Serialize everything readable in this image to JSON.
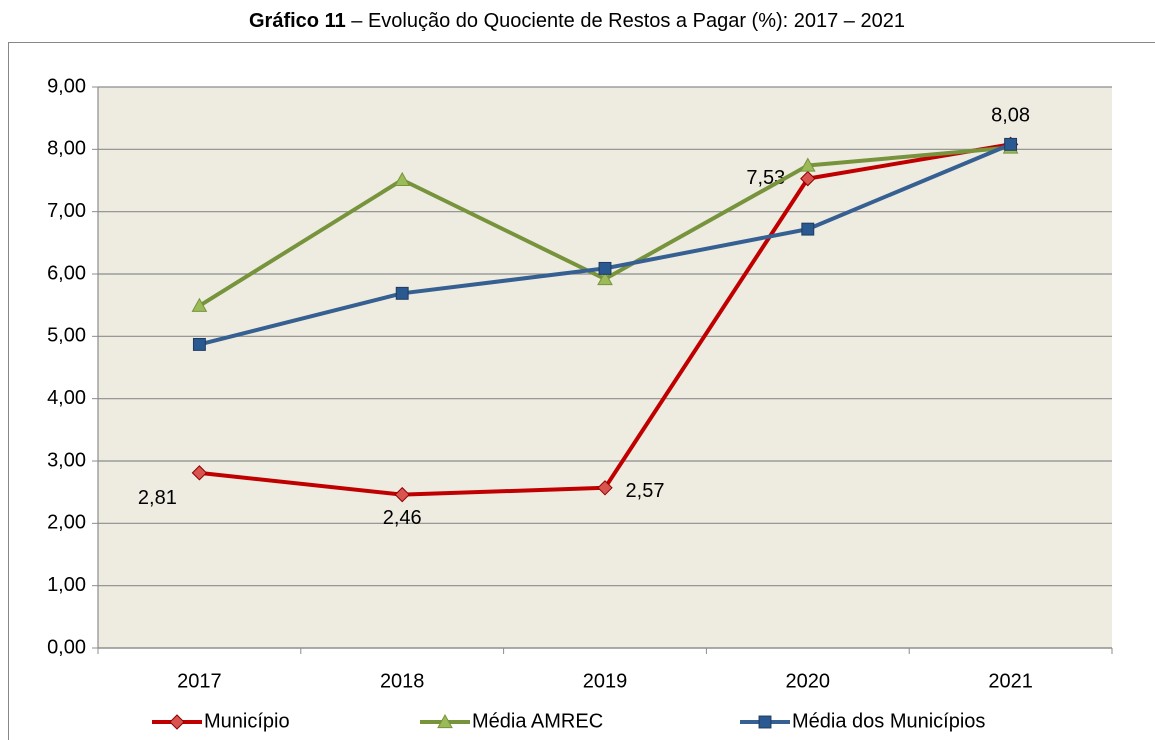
{
  "chart_data": {
    "type": "line",
    "title": {
      "number": "Gráfico 11",
      "text": "– Evolução do Quociente de Restos a Pagar (%): 2017 – 2021"
    },
    "categories": [
      "2017",
      "2018",
      "2019",
      "2020",
      "2021"
    ],
    "series": [
      {
        "name": "Município",
        "color": "#C00000",
        "marker": "diamond",
        "marker_color": "#D9534F",
        "values": [
          2.81,
          2.46,
          2.57,
          7.53,
          8.08
        ],
        "value_labels": [
          "2,81",
          "2,46",
          "2,57",
          "7,53",
          "8,08"
        ]
      },
      {
        "name": "Média AMREC",
        "color": "#77933C",
        "marker": "triangle",
        "marker_color": "#9BBB59",
        "values": [
          5.49,
          7.51,
          5.92,
          7.74,
          8.03
        ]
      },
      {
        "name": "Média dos Municípios",
        "color": "#376092",
        "marker": "square",
        "marker_color": "#2A5890",
        "values": [
          4.87,
          5.69,
          6.09,
          6.72,
          8.08
        ]
      }
    ],
    "ylim": [
      0,
      9
    ],
    "yticks": [
      {
        "value": 0,
        "label": "0,00"
      },
      {
        "value": 1,
        "label": "1,00"
      },
      {
        "value": 2,
        "label": "2,00"
      },
      {
        "value": 3,
        "label": "3,00"
      },
      {
        "value": 4,
        "label": "4,00"
      },
      {
        "value": 5,
        "label": "5,00"
      },
      {
        "value": 6,
        "label": "6,00"
      },
      {
        "value": 7,
        "label": "7,00"
      },
      {
        "value": 8,
        "label": "8,00"
      },
      {
        "value": 9,
        "label": "9,00"
      }
    ],
    "grid": true,
    "plot_background": "#EEECE1",
    "legend": "bottom"
  }
}
